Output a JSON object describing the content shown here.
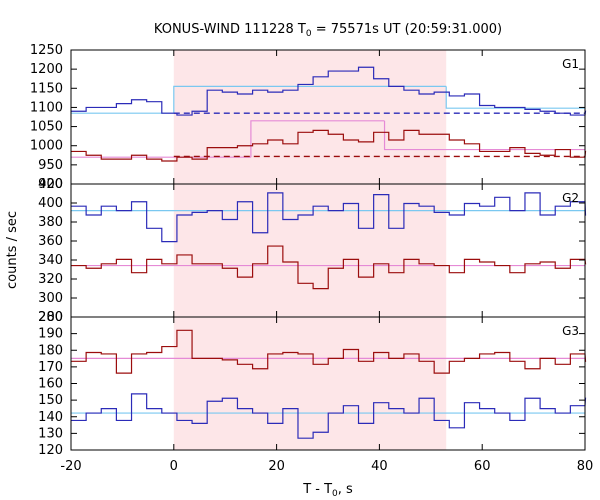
{
  "chart_data": {
    "type": "line",
    "title": "KONUS-WIND 111228 T",
    "title_sub": "0",
    "title_rest": " = 75571s UT (20:59:31.000)",
    "xlabel": "T - T",
    "xlabel_sub": "0",
    "xlabel_rest": ", s",
    "ylabel": "counts / sec",
    "xlim": [
      -20,
      80
    ],
    "xticks": [
      "-20",
      "0",
      "20",
      "40",
      "60",
      "80"
    ],
    "shaded_interval": [
      0,
      53
    ],
    "colors": {
      "blue": "#2b2bb8",
      "red": "#9b0d0d",
      "bg_blue": "#7ac8f0",
      "bg_pink": "#e58ad6",
      "shade": "#fde6e8"
    },
    "panels": [
      {
        "name": "G1",
        "ylim": [
          900,
          1250
        ],
        "yticks": [
          "900",
          "950",
          "1000",
          "1050",
          "1100",
          "1150",
          "1200",
          "1250"
        ],
        "series": [
          {
            "color": "blue",
            "x0": -20,
            "dx": 2.944,
            "values": [
              1090,
              1100,
              1100,
              1110,
              1120,
              1115,
              1085,
              1080,
              1090,
              1145,
              1140,
              1135,
              1145,
              1140,
              1145,
              1160,
              1180,
              1195,
              1195,
              1205,
              1175,
              1155,
              1145,
              1135,
              1140,
              1130,
              1135,
              1105,
              1100,
              1100,
              1095,
              1090,
              1085,
              1080,
              1090
            ]
          },
          {
            "color": "red",
            "x0": -20,
            "dx": 2.944,
            "values": [
              985,
              975,
              965,
              965,
              975,
              965,
              960,
              970,
              965,
              995,
              995,
              1000,
              1005,
              1015,
              1005,
              1035,
              1040,
              1030,
              1015,
              1010,
              1035,
              1015,
              1040,
              1030,
              1030,
              1015,
              1005,
              985,
              985,
              995,
              980,
              975,
              990,
              970,
              985
            ]
          }
        ],
        "backgrounds": [
          {
            "color": "bg_blue",
            "segments": [
              [
                -20,
                0,
                1085
              ],
              [
                0,
                53,
                1155
              ],
              [
                53,
                80,
                1098
              ]
            ]
          },
          {
            "color": "bg_pink",
            "segments": [
              [
                -20,
                15,
                970
              ],
              [
                15,
                41,
                1065
              ],
              [
                41,
                80,
                990
              ]
            ]
          }
        ],
        "dashed": [
          {
            "color": "blue",
            "x": [
              0,
              80
            ],
            "y": 1085
          },
          {
            "color": "red",
            "x": [
              0,
              80
            ],
            "y": 972
          }
        ]
      },
      {
        "name": "G2",
        "ylim": [
          280,
          430
        ],
        "yticks": [
          "280",
          "300",
          "320",
          "340",
          "360",
          "380",
          "400",
          "420"
        ],
        "series": [
          {
            "color": "blue",
            "x0": -20,
            "dx": 2.944,
            "values": [
              405,
              395,
              405,
              400,
              410,
              380,
              365,
              395,
              398,
              400,
              390,
              410,
              375,
              420,
              390,
              395,
              405,
              400,
              408,
              380,
              418,
              380,
              408,
              405,
              398,
              395,
              408,
              405,
              415,
              400,
              420,
              395,
              405,
              410,
              395
            ]
          },
          {
            "color": "red",
            "x0": -20,
            "dx": 2.944,
            "values": [
              338,
              335,
              340,
              345,
              330,
              345,
              340,
              350,
              340,
              340,
              335,
              325,
              340,
              360,
              342,
              318,
              312,
              335,
              345,
              325,
              340,
              330,
              345,
              340,
              338,
              330,
              345,
              342,
              338,
              330,
              340,
              342,
              335,
              345,
              340
            ]
          }
        ],
        "backgrounds": [
          {
            "color": "bg_blue",
            "segments": [
              [
                -20,
                80,
                400
              ]
            ]
          },
          {
            "color": "bg_pink",
            "segments": [
              [
                -20,
                80,
                338
              ]
            ]
          }
        ],
        "dashed": []
      },
      {
        "name": "G3",
        "ylim": [
          120,
          210
        ],
        "yticks": [
          "120",
          "130",
          "140",
          "150",
          "160",
          "170",
          "180",
          "190",
          "200"
        ],
        "series": [
          {
            "color": "blue",
            "x0": -20,
            "dx": 2.944,
            "values": [
              140,
              145,
              148,
              140,
              158,
              148,
              145,
              140,
              138,
              153,
              155,
              148,
              145,
              138,
              148,
              128,
              132,
              145,
              150,
              138,
              152,
              148,
              145,
              155,
              140,
              135,
              152,
              148,
              145,
              140,
              155,
              148,
              145,
              150,
              155
            ]
          },
          {
            "color": "red",
            "x0": -20,
            "dx": 2.944,
            "values": [
              180,
              186,
              185,
              172,
              185,
              186,
              190,
              201,
              182,
              182,
              181,
              178,
              175,
              185,
              186,
              185,
              178,
              182,
              188,
              180,
              186,
              182,
              185,
              180,
              172,
              180,
              182,
              185,
              186,
              180,
              175,
              182,
              178,
              185,
              180
            ]
          }
        ],
        "backgrounds": [
          {
            "color": "bg_blue",
            "segments": [
              [
                -20,
                80,
                145
              ]
            ]
          },
          {
            "color": "bg_pink",
            "segments": [
              [
                -20,
                80,
                182
              ]
            ]
          }
        ],
        "dashed": []
      }
    ]
  }
}
